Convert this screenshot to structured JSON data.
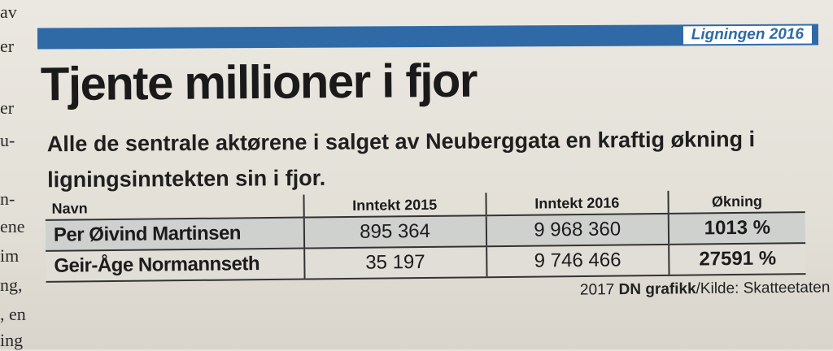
{
  "left_column": [
    "av",
    "er",
    "er",
    "u-",
    "n-",
    "ene",
    "im",
    "ng,",
    ", en",
    "ing"
  ],
  "rubric": {
    "label": "Ligningen 2016"
  },
  "headline": "Tjente millioner i fjor",
  "subhead": "Alle de sentrale aktørene i salget av Neuberggata en kraftig økning i ligningsinntekten sin i fjor.",
  "table": {
    "headers": [
      "Navn",
      "Inntekt 2015",
      "Inntekt 2016",
      "Økning"
    ],
    "rows": [
      {
        "name": "Per Øivind Martinsen",
        "income_2015": "895 364",
        "income_2016": "9 968 360",
        "increase": "1013 %"
      },
      {
        "name": "Geir-Åge Normannseth",
        "income_2015": "35 197",
        "income_2016": "9 746 466",
        "increase": "27591 %"
      }
    ]
  },
  "credit": {
    "year": "2017",
    "brand": "DN grafikk",
    "source": "/Kilde: Skatteetaten"
  }
}
